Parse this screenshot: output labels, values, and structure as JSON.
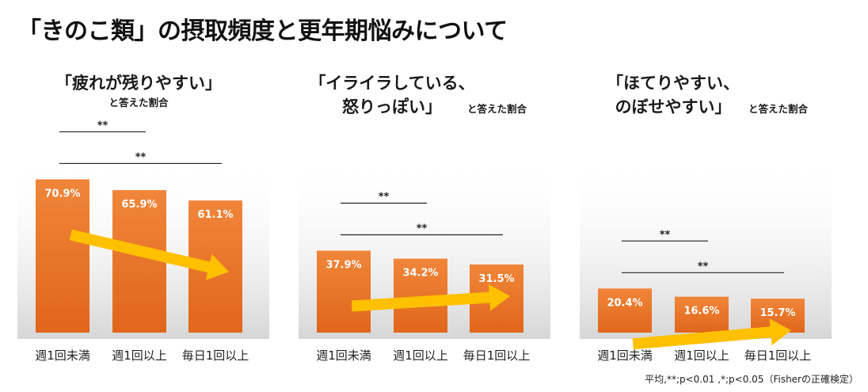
{
  "title": "「きのこ類」の摂取頻度と更年期悩みについて",
  "footnote": "平均,**;p<0.01 ,*;p<0.05（Fisherの正確検定）",
  "colors": {
    "bar_top": "#f0863a",
    "bar_bottom": "#e0661a",
    "arrow": "#ffc000",
    "value_label": "#ffffff"
  },
  "chart_data": [
    {
      "type": "bar",
      "title_lines": [
        "「疲れが残りやすい」"
      ],
      "subtitle": "と答えた割合",
      "categories": [
        "週1回未満",
        "週1回以上",
        "毎日1回以上"
      ],
      "values": [
        70.9,
        65.9,
        61.1
      ],
      "value_labels": [
        "70.9%",
        "65.9%",
        "61.1%"
      ],
      "unit": "%",
      "significance": [
        {
          "from": 0,
          "to": 1,
          "label": "**"
        },
        {
          "from": 0,
          "to": 2,
          "label": "**"
        }
      ],
      "trend_arrow": "decreasing",
      "grid": false,
      "legend": "none"
    },
    {
      "type": "bar",
      "title_lines": [
        "「イライラしている、",
        "怒りっぽい」"
      ],
      "subtitle": "と答えた割合",
      "categories": [
        "週1回未満",
        "週1回以上",
        "毎日1回以上"
      ],
      "values": [
        37.9,
        34.2,
        31.5
      ],
      "value_labels": [
        "37.9%",
        "34.2%",
        "31.5%"
      ],
      "unit": "%",
      "significance": [
        {
          "from": 0,
          "to": 1,
          "label": "**"
        },
        {
          "from": 0,
          "to": 2,
          "label": "**"
        }
      ],
      "trend_arrow": "decreasing",
      "grid": false,
      "legend": "none"
    },
    {
      "type": "bar",
      "title_lines": [
        "「ほてりやすい、",
        "のぼせやすい」"
      ],
      "subtitle": "と答えた割合",
      "categories": [
        "週1回未満",
        "週1回以上",
        "毎日1回以上"
      ],
      "values": [
        20.4,
        16.6,
        15.7
      ],
      "value_labels": [
        "20.4%",
        "16.6%",
        "15.7%"
      ],
      "unit": "%",
      "significance": [
        {
          "from": 0,
          "to": 1,
          "label": "**"
        },
        {
          "from": 0,
          "to": 2,
          "label": "**"
        }
      ],
      "trend_arrow": "decreasing",
      "grid": false,
      "legend": "none"
    }
  ]
}
